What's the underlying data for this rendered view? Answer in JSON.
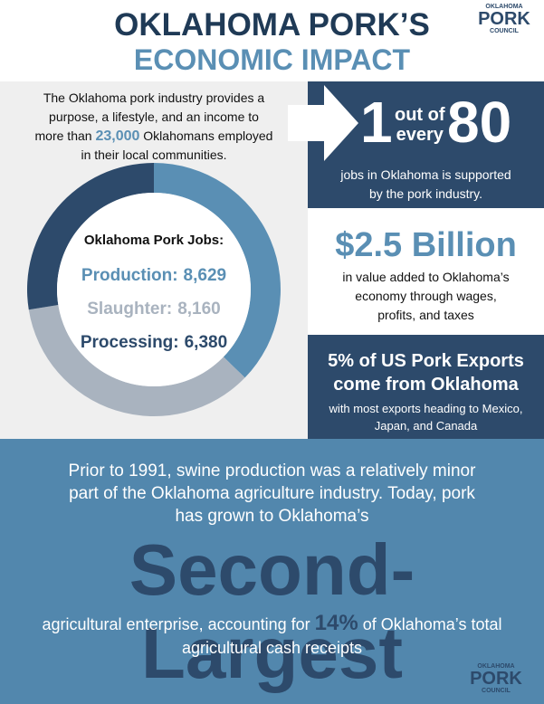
{
  "header": {
    "title_line1": "OKLAHOMA PORK’S",
    "title_line2": "ECONOMIC IMPACT"
  },
  "logo": {
    "top": "OKLAHOMA",
    "main": "PORK",
    "bottom": "COUNCIL"
  },
  "intro": {
    "line1": "The Oklahoma pork industry provides a",
    "line2": "purpose, a lifestyle, and an income to",
    "line3_before": "more than",
    "highlight": "23,000",
    "line3_after": "Oklahomans employed",
    "line4": "in their local communities."
  },
  "chart_data": {
    "type": "donut",
    "title": "Oklahoma Pork Jobs:",
    "categories": [
      "Production:",
      "Slaughter:",
      "Processing:"
    ],
    "values": [
      8629,
      8160,
      6380
    ],
    "value_labels": [
      "8,629",
      "8,160",
      "6,380"
    ],
    "colors": [
      "#5a8fb4",
      "#a9b3bf",
      "#2d4a6b"
    ]
  },
  "stat_jobs": {
    "numerator": "1",
    "connector": [
      "out of",
      "every"
    ],
    "denominator": "80",
    "caption": [
      "jobs in Oklahoma is supported",
      "by the pork industry."
    ]
  },
  "stat_value": {
    "headline": "$2.5 Billion",
    "caption": [
      "in value added to Oklahoma’s",
      "economy through wages,",
      "profits, and taxes"
    ]
  },
  "stat_exports": {
    "headline": [
      "5% of US Pork Exports",
      "come from Oklahoma"
    ],
    "caption": [
      "with most exports heading to Mexico,",
      "Japan, and Canada"
    ]
  },
  "bottom": {
    "lines": [
      "Prior to 1991, swine production was a relatively minor",
      "part of the Oklahoma agriculture industry. Today, pork",
      "has grown to Oklahoma’s"
    ],
    "headline": "Second-Largest",
    "closing_before": "agricultural enterprise, accounting for",
    "closing_highlight": "14%",
    "closing_after": "of Oklahoma’s total",
    "closing_line2": "agricultural cash receipts"
  }
}
